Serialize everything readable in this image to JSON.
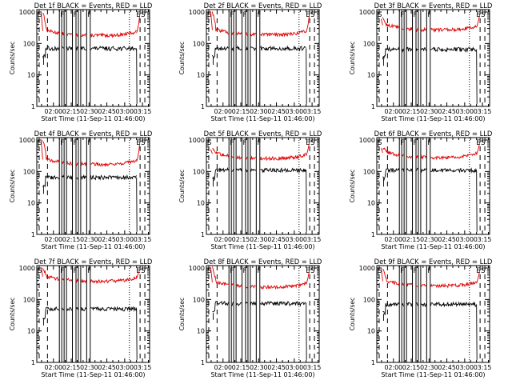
{
  "figure": {
    "grid": "3x3",
    "line_colors": {
      "events": "#000000",
      "lld": "#e00000"
    }
  },
  "chart_data": [
    {
      "type": "line",
      "title": "Det 1f BLACK = Events, RED = LLD",
      "xlabel": "Start Time (11-Sep-11 01:46:00)",
      "ylabel": "Counts/sec",
      "yscale": "log",
      "ylim": [
        1,
        1000
      ],
      "yticks": [
        "1",
        "10",
        "100",
        "1000"
      ],
      "x_unit": "minutes since 01:46:00",
      "xlim": [
        0,
        95
      ],
      "xticks": [
        "02:00",
        "02:15",
        "02:30",
        "02:45",
        "03:00",
        "03:15"
      ],
      "lld_level": 180,
      "events_level": 70,
      "lld_start": 1000,
      "dashed_markers": [
        2,
        9,
        87,
        91
      ],
      "dotted_markers": [
        78
      ],
      "gaps": [
        [
          19,
          21
        ],
        [
          23,
          25
        ],
        [
          30,
          33
        ],
        [
          35,
          37
        ],
        [
          42,
          45
        ]
      ],
      "annotations": [
        {
          "text": "S",
          "at": 0
        },
        {
          "text": "F",
          "at": 19
        },
        {
          "text": "F",
          "at": 30
        },
        {
          "text": "F",
          "at": 42
        },
        {
          "text": "E",
          "at": 83
        },
        {
          "text": "S",
          "at": 87
        }
      ]
    },
    {
      "type": "line",
      "title": "Det 2f BLACK = Events, RED = LLD",
      "xlabel": "Start Time (11-Sep-11 01:46:00)",
      "ylabel": "Counts/sec",
      "yscale": "log",
      "ylim": [
        1,
        1000
      ],
      "yticks": [
        "1",
        "10",
        "100",
        "1000"
      ],
      "x_unit": "minutes since 01:46:00",
      "xlim": [
        0,
        95
      ],
      "xticks": [
        "02:00",
        "02:15",
        "02:30",
        "02:45",
        "03:00",
        "03:15"
      ],
      "lld_level": 190,
      "events_level": 70,
      "lld_start": 1000,
      "dashed_markers": [
        2,
        9,
        87,
        91
      ],
      "dotted_markers": [
        78
      ],
      "gaps": [
        [
          19,
          21
        ],
        [
          23,
          25
        ],
        [
          30,
          33
        ],
        [
          35,
          37
        ],
        [
          42,
          45
        ]
      ],
      "annotations": [
        {
          "text": "S",
          "at": 0
        },
        {
          "text": "F",
          "at": 19
        },
        {
          "text": "F",
          "at": 30
        },
        {
          "text": "F",
          "at": 42
        },
        {
          "text": "E",
          "at": 83
        },
        {
          "text": "S",
          "at": 87
        }
      ]
    },
    {
      "type": "line",
      "title": "Det 3f BLACK = Events, RED = LLD",
      "xlabel": "Start Time (11-Sep-11 01:46:00)",
      "ylabel": "Counts/sec",
      "yscale": "log",
      "ylim": [
        1,
        1000
      ],
      "yticks": [
        "1",
        "10",
        "100",
        "1000"
      ],
      "x_unit": "minutes since 01:46:00",
      "xlim": [
        0,
        95
      ],
      "xticks": [
        "02:00",
        "02:15",
        "02:30",
        "02:45",
        "03:00",
        "03:15"
      ],
      "lld_level": 270,
      "events_level": 65,
      "lld_start": 600,
      "dashed_markers": [
        2,
        9,
        87,
        91
      ],
      "dotted_markers": [
        78
      ],
      "gaps": [
        [
          19,
          21
        ],
        [
          23,
          25
        ],
        [
          30,
          33
        ],
        [
          35,
          37
        ],
        [
          42,
          45
        ]
      ],
      "annotations": [
        {
          "text": "S",
          "at": 0
        },
        {
          "text": "F",
          "at": 19
        },
        {
          "text": "F",
          "at": 30
        },
        {
          "text": "F",
          "at": 42
        },
        {
          "text": "E",
          "at": 83
        },
        {
          "text": "S",
          "at": 87
        }
      ]
    },
    {
      "type": "line",
      "title": "Det 4f BLACK = Events, RED = LLD",
      "xlabel": "Start Time (11-Sep-11 01:46:00)",
      "ylabel": "Counts/sec",
      "yscale": "log",
      "ylim": [
        1,
        1000
      ],
      "yticks": [
        "1",
        "10",
        "100",
        "1000"
      ],
      "x_unit": "minutes since 01:46:00",
      "xlim": [
        0,
        95
      ],
      "xticks": [
        "02:00",
        "02:15",
        "02:30",
        "02:45",
        "03:00",
        "03:15"
      ],
      "lld_level": 170,
      "events_level": 65,
      "lld_start": 1000,
      "dashed_markers": [
        2,
        9,
        87,
        91
      ],
      "dotted_markers": [
        78
      ],
      "gaps": [
        [
          19,
          21
        ],
        [
          23,
          25
        ],
        [
          30,
          33
        ],
        [
          35,
          37
        ],
        [
          42,
          45
        ]
      ],
      "annotations": [
        {
          "text": "S",
          "at": 0
        },
        {
          "text": "F",
          "at": 19
        },
        {
          "text": "F",
          "at": 30
        },
        {
          "text": "F",
          "at": 42
        },
        {
          "text": "E",
          "at": 83
        },
        {
          "text": "S",
          "at": 87
        }
      ]
    },
    {
      "type": "line",
      "title": "Det 5f BLACK = Events, RED = LLD",
      "xlabel": "Start Time (11-Sep-11 01:46:00)",
      "ylabel": "Counts/sec",
      "yscale": "log",
      "ylim": [
        1,
        1000
      ],
      "yticks": [
        "1",
        "10",
        "100",
        "1000"
      ],
      "x_unit": "minutes since 01:46:00",
      "xlim": [
        0,
        95
      ],
      "xticks": [
        "02:00",
        "02:15",
        "02:30",
        "02:45",
        "03:00",
        "03:15"
      ],
      "lld_level": 260,
      "events_level": 110,
      "lld_start": 500,
      "dashed_markers": [
        2,
        9,
        87,
        91
      ],
      "dotted_markers": [
        78
      ],
      "gaps": [
        [
          19,
          21
        ],
        [
          23,
          25
        ],
        [
          30,
          33
        ],
        [
          35,
          37
        ],
        [
          42,
          45
        ]
      ],
      "annotations": [
        {
          "text": "S",
          "at": 0
        },
        {
          "text": "F",
          "at": 19
        },
        {
          "text": "F",
          "at": 30
        },
        {
          "text": "F",
          "at": 42
        },
        {
          "text": "E",
          "at": 83
        },
        {
          "text": "S",
          "at": 87
        }
      ]
    },
    {
      "type": "line",
      "title": "Det 6f BLACK = Events, RED = LLD",
      "xlabel": "Start Time (11-Sep-11 01:46:00)",
      "ylabel": "Counts/sec",
      "yscale": "log",
      "ylim": [
        1,
        1000
      ],
      "yticks": [
        "1",
        "10",
        "100",
        "1000"
      ],
      "x_unit": "minutes since 01:46:00",
      "xlim": [
        0,
        95
      ],
      "xticks": [
        "02:00",
        "02:15",
        "02:30",
        "02:45",
        "03:00",
        "03:15"
      ],
      "lld_level": 280,
      "events_level": 110,
      "lld_start": 550,
      "dashed_markers": [
        2,
        9,
        87,
        91
      ],
      "dotted_markers": [
        78
      ],
      "gaps": [
        [
          19,
          21
        ],
        [
          23,
          25
        ],
        [
          30,
          33
        ],
        [
          35,
          37
        ],
        [
          42,
          45
        ]
      ],
      "annotations": [
        {
          "text": "S",
          "at": 0
        },
        {
          "text": "F",
          "at": 19
        },
        {
          "text": "F",
          "at": 30
        },
        {
          "text": "F",
          "at": 42
        },
        {
          "text": "E",
          "at": 83
        },
        {
          "text": "S",
          "at": 87
        }
      ]
    },
    {
      "type": "line",
      "title": "Det 7f BLACK = Events, RED = LLD",
      "xlabel": "Start Time (11-Sep-11 01:46:00)",
      "ylabel": "Counts/sec",
      "yscale": "log",
      "ylim": [
        1,
        1000
      ],
      "yticks": [
        "1",
        "10",
        "100",
        "1000"
      ],
      "x_unit": "minutes since 01:46:00",
      "xlim": [
        0,
        95
      ],
      "xticks": [
        "02:00",
        "02:15",
        "02:30",
        "02:45",
        "03:00",
        "03:15"
      ],
      "lld_level": 380,
      "events_level": 50,
      "lld_start": 1000,
      "dashed_markers": [
        2,
        9,
        87,
        91
      ],
      "dotted_markers": [
        78
      ],
      "gaps": [
        [
          19,
          21
        ],
        [
          23,
          25
        ],
        [
          30,
          33
        ],
        [
          35,
          37
        ],
        [
          42,
          45
        ]
      ],
      "annotations": [
        {
          "text": "S",
          "at": 0
        },
        {
          "text": "F",
          "at": 19
        },
        {
          "text": "F",
          "at": 30
        },
        {
          "text": "F",
          "at": 42
        },
        {
          "text": "E",
          "at": 83
        },
        {
          "text": "S",
          "at": 87
        }
      ]
    },
    {
      "type": "line",
      "title": "Det 8f BLACK = Events, RED = LLD",
      "xlabel": "Start Time (11-Sep-11 01:46:00)",
      "ylabel": "Counts/sec",
      "yscale": "log",
      "ylim": [
        1,
        1000
      ],
      "yticks": [
        "1",
        "10",
        "100",
        "1000"
      ],
      "x_unit": "minutes since 01:46:00",
      "xlim": [
        0,
        95
      ],
      "xticks": [
        "02:00",
        "02:15",
        "02:30",
        "02:45",
        "03:00",
        "03:15"
      ],
      "lld_level": 250,
      "events_level": 75,
      "lld_start": 1000,
      "dashed_markers": [
        2,
        9,
        87,
        91
      ],
      "dotted_markers": [
        78
      ],
      "gaps": [
        [
          19,
          21
        ],
        [
          23,
          25
        ],
        [
          30,
          33
        ],
        [
          35,
          37
        ],
        [
          42,
          45
        ]
      ],
      "annotations": [
        {
          "text": "S",
          "at": 0
        },
        {
          "text": "F",
          "at": 19
        },
        {
          "text": "F",
          "at": 30
        },
        {
          "text": "F",
          "at": 42
        },
        {
          "text": "E",
          "at": 83
        },
        {
          "text": "S",
          "at": 87
        }
      ]
    },
    {
      "type": "line",
      "title": "Det 9f BLACK = Events, RED = LLD",
      "xlabel": "Start Time (11-Sep-11 01:46:00)",
      "ylabel": "Counts/sec",
      "yscale": "log",
      "ylim": [
        1,
        1000
      ],
      "yticks": [
        "1",
        "10",
        "100",
        "1000"
      ],
      "x_unit": "minutes since 01:46:00",
      "xlim": [
        0,
        95
      ],
      "xticks": [
        "02:00",
        "02:15",
        "02:30",
        "02:45",
        "03:00",
        "03:15"
      ],
      "lld_level": 270,
      "events_level": 70,
      "lld_start": 1000,
      "dashed_markers": [
        2,
        9,
        87,
        91
      ],
      "dotted_markers": [
        78
      ],
      "gaps": [
        [
          19,
          21
        ],
        [
          23,
          25
        ],
        [
          30,
          33
        ],
        [
          35,
          37
        ],
        [
          42,
          45
        ]
      ],
      "annotations": [
        {
          "text": "S",
          "at": 0
        },
        {
          "text": "F",
          "at": 19
        },
        {
          "text": "F",
          "at": 30
        },
        {
          "text": "F",
          "at": 42
        },
        {
          "text": "E",
          "at": 83
        },
        {
          "text": "S",
          "at": 87
        }
      ]
    }
  ]
}
